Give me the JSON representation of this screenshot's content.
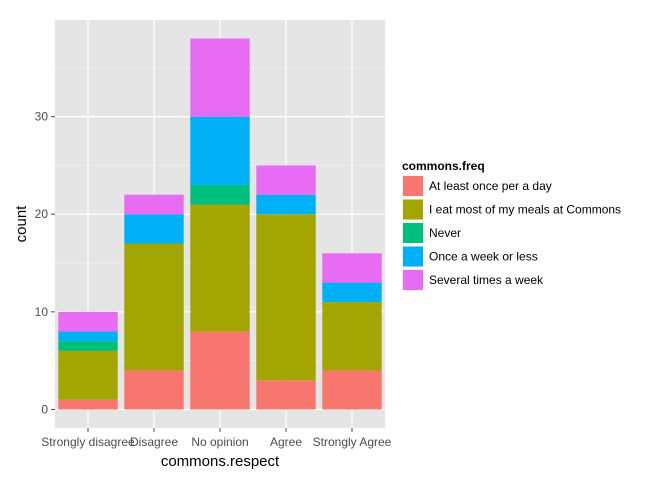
{
  "chart_data": {
    "type": "bar",
    "stacked": true,
    "categories": [
      "Strongly disagree",
      "Disagree",
      "No opinion",
      "Agree",
      "Strongly Agree"
    ],
    "series": [
      {
        "name": "At least once per a day",
        "color": "#F8766D",
        "values": [
          1,
          4,
          8,
          3,
          4
        ]
      },
      {
        "name": "I eat most of my meals at Commons",
        "color": "#A3A500",
        "values": [
          5,
          13,
          13,
          17,
          7
        ]
      },
      {
        "name": "Never",
        "color": "#00BF7D",
        "values": [
          1,
          0,
          2,
          0,
          0
        ]
      },
      {
        "name": "Once a week or less",
        "color": "#00B0F6",
        "values": [
          1,
          3,
          7,
          2,
          2
        ]
      },
      {
        "name": "Several times a week",
        "color": "#E76BF3",
        "values": [
          2,
          2,
          8,
          3,
          3
        ]
      }
    ],
    "xlabel": "commons.respect",
    "ylabel": "count",
    "yticks": [
      0,
      10,
      20,
      30
    ],
    "ylim": [
      -1.9,
      39.9
    ],
    "legend_title": "commons.freq",
    "legend_position": "right",
    "grid": true,
    "panel_background": "#E5E5E5"
  }
}
